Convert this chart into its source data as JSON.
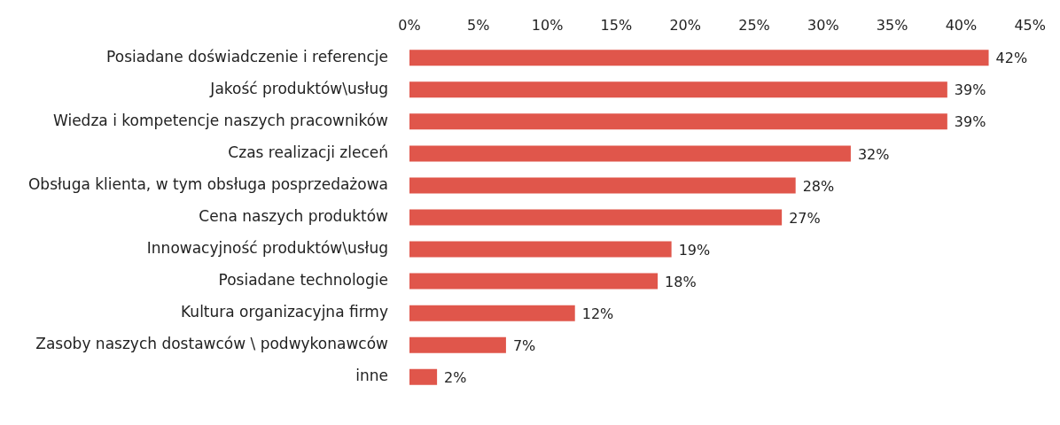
{
  "chart_data": {
    "type": "bar",
    "orientation": "horizontal",
    "categories": [
      "Posiadane doświadczenie i referencje",
      "Jakość produktów\\usług",
      "Wiedza i kompetencje naszych pracowników",
      "Czas realizacji zleceń",
      "Obsługa klienta, w tym obsługa posprzedażowa",
      "Cena naszych produktów",
      "Innowacyjność produktów\\usług",
      "Posiadane technologie",
      "Kultura organizacyjna firmy",
      "Zasoby naszych dostawców \\ podwykonawców",
      "inne"
    ],
    "values": [
      42,
      39,
      39,
      32,
      28,
      27,
      19,
      18,
      12,
      7,
      2
    ],
    "value_labels": [
      "42%",
      "39%",
      "39%",
      "32%",
      "28%",
      "27%",
      "19%",
      "18%",
      "12%",
      "7%",
      "2%"
    ],
    "color": "#e0564b",
    "xlim": [
      0,
      45
    ],
    "xticks": [
      {
        "value": 0,
        "label": "0%"
      },
      {
        "value": 5,
        "label": "5%"
      },
      {
        "value": 10,
        "label": "10%"
      },
      {
        "value": 15,
        "label": "15%"
      },
      {
        "value": 20,
        "label": "20%"
      },
      {
        "value": 25,
        "label": "25%"
      },
      {
        "value": 30,
        "label": "30%"
      },
      {
        "value": 35,
        "label": "35%"
      },
      {
        "value": 40,
        "label": "40%"
      },
      {
        "value": 45,
        "label": "45%"
      }
    ],
    "grid": false,
    "legend": false
  }
}
